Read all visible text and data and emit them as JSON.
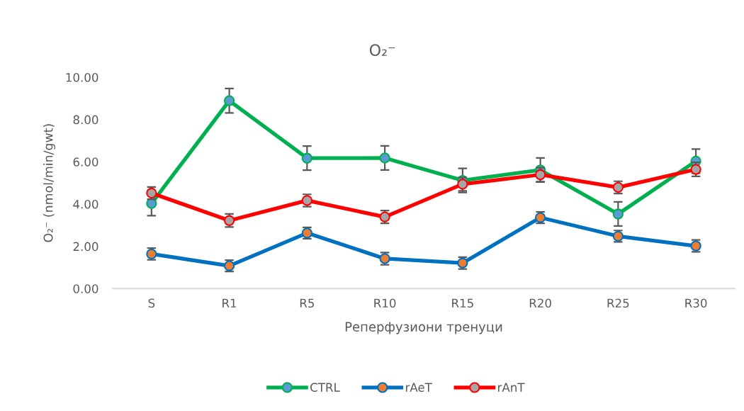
{
  "chart_data": {
    "type": "line",
    "title": "O₂⁻",
    "xlabel": "Реперфузиони тренуци",
    "ylabel": "O₂⁻ (nmol/min/gwt)",
    "categories": [
      "S",
      "R1",
      "R5",
      "R10",
      "R15",
      "R20",
      "R25",
      "R30"
    ],
    "series": [
      {
        "name": "CTRL",
        "color": "#00b050",
        "colors": [
          "#5b9bd5",
          "#5b9bd5",
          "#5b9bd5",
          "#5b9bd5",
          "#5b9bd5",
          "#5b9bd5",
          "#5b9bd5",
          "#5b9bd5"
        ],
        "values": [
          4.03,
          8.89,
          6.17,
          6.18,
          5.12,
          5.61,
          3.53,
          6.03
        ],
        "errors": [
          0.58,
          0.58,
          0.57,
          0.57,
          0.57,
          0.57,
          0.57,
          0.57
        ]
      },
      {
        "name": "rAeT",
        "color": "#0070c0",
        "colors": [
          "#ed7d31",
          "#ed7d31",
          "#ed7d31",
          "#ed7d31",
          "#ed7d31",
          "#ed7d31",
          "#ed7d31",
          "#ed7d31"
        ],
        "values": [
          1.64,
          1.08,
          2.63,
          1.42,
          1.21,
          3.36,
          2.48,
          2.02
        ],
        "errors": [
          0.28,
          0.27,
          0.27,
          0.29,
          0.28,
          0.27,
          0.27,
          0.28
        ]
      },
      {
        "name": "rAnT",
        "color": "#ff0000",
        "colors": [
          "#a5a5a5",
          "#a5a5a5",
          "#a5a5a5",
          "#a5a5a5",
          "#a5a5a5",
          "#a5a5a5",
          "#a5a5a5",
          "#a5a5a5"
        ],
        "values": [
          4.52,
          3.22,
          4.17,
          3.39,
          4.94,
          5.39,
          4.79,
          5.64
        ],
        "errors": [
          0.29,
          0.31,
          0.29,
          0.3,
          0.32,
          0.33,
          0.29,
          0.33
        ]
      }
    ],
    "ylim": [
      0,
      10
    ],
    "yticks": [
      {
        "value": 0,
        "label": "0.00"
      },
      {
        "value": 2,
        "label": "2.00"
      },
      {
        "value": 4,
        "label": "4.00"
      },
      {
        "value": 6,
        "label": "6.00"
      },
      {
        "value": 8,
        "label": "8.00"
      },
      {
        "value": 10,
        "label": "10.00"
      }
    ],
    "grid": false,
    "legend": "bottom",
    "marker": "circle",
    "line_style": "solid"
  }
}
